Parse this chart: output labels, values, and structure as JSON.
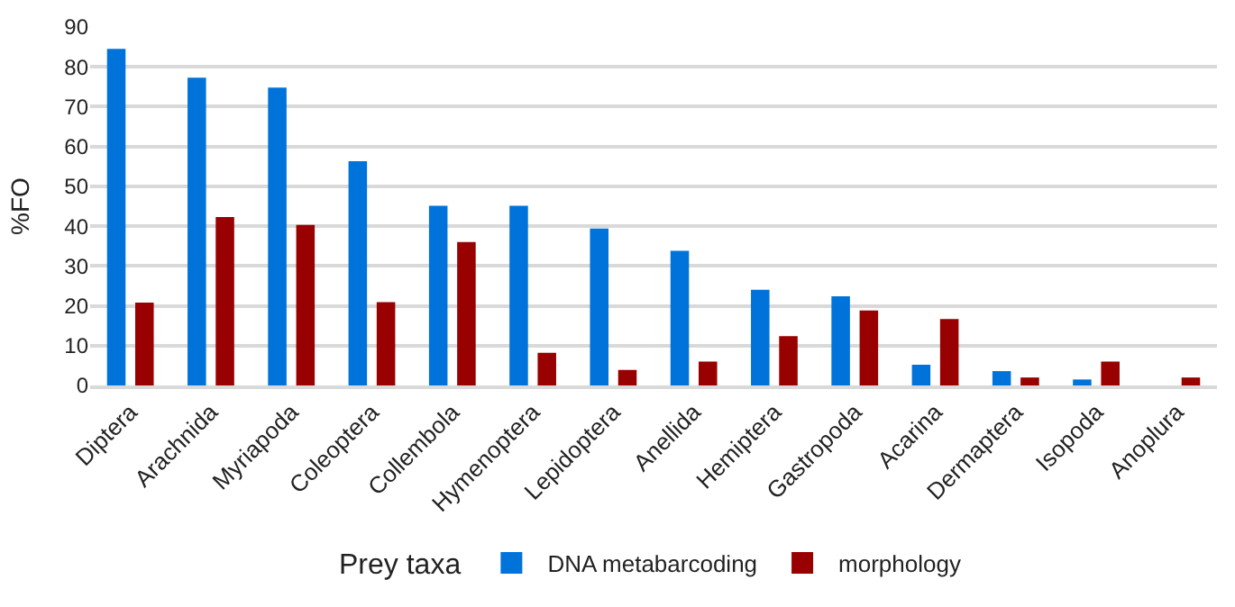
{
  "chart_data": {
    "type": "bar",
    "ylabel": "%FO",
    "legend_title": "Prey taxa",
    "categories": [
      "Diptera",
      "Arachnida",
      "Myriapoda",
      "Coleoptera",
      "Collembola",
      "Hymenoptera",
      "Lepidoptera",
      "Anellida",
      "Hemiptera",
      "Gastropoda",
      "Acarina",
      "Dermaptera",
      "Isopoda",
      "Anoplura"
    ],
    "series": [
      {
        "name": "DNA metabarcoding",
        "color": "#0073db",
        "values": [
          84.5,
          77.3,
          74.8,
          56.3,
          45.1,
          45.1,
          39.4,
          33.8,
          24.0,
          22.4,
          5.2,
          3.6,
          1.5,
          0
        ]
      },
      {
        "name": "morphology",
        "color": "#990000",
        "values": [
          20.8,
          42.3,
          40.3,
          20.9,
          36.0,
          8.2,
          3.9,
          6.0,
          12.4,
          18.8,
          16.7,
          2.0,
          6.0,
          2.0
        ]
      }
    ],
    "ylim": [
      0,
      90
    ],
    "yticks": [
      0,
      10,
      20,
      30,
      40,
      50,
      60,
      70,
      80,
      90
    ],
    "grid": "y",
    "legend": "bottom"
  }
}
